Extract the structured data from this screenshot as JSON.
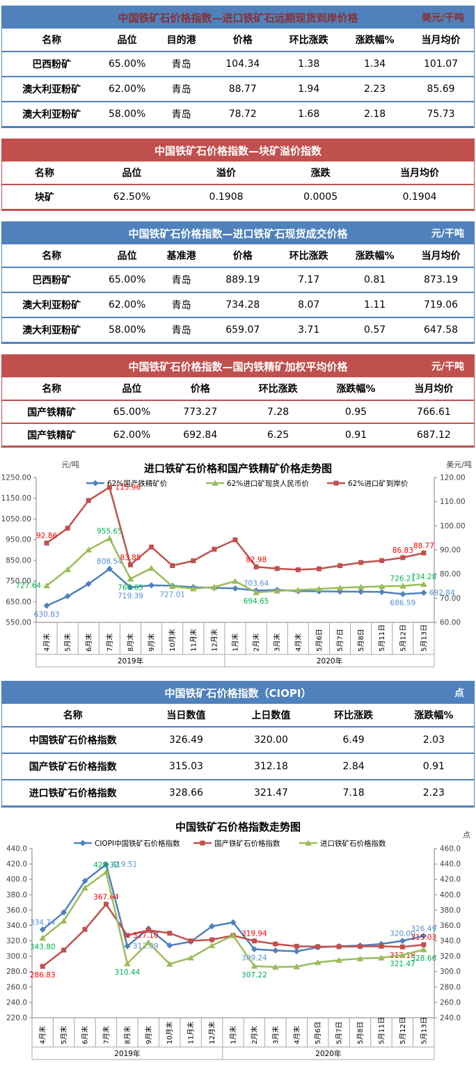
{
  "tables": [
    {
      "theme": "blue",
      "title": "中国铁矿石价格指数—进口铁矿石远期现货到岸价格",
      "unit": "美元/干吨",
      "title_color": "darkred",
      "columns": [
        "名称",
        "品位",
        "目的港",
        "价格",
        "环比涨跌",
        "涨跌幅%",
        "当月均价"
      ],
      "rows": [
        [
          "巴西粉矿",
          "65.00%",
          "青岛",
          "104.34",
          "1.38",
          "1.34",
          "101.07"
        ],
        [
          "澳大利亚粉矿",
          "62.00%",
          "青岛",
          "88.77",
          "1.94",
          "2.23",
          "85.69"
        ],
        [
          "澳大利亚粉矿",
          "58.00%",
          "青岛",
          "78.72",
          "1.68",
          "2.18",
          "75.73"
        ]
      ]
    },
    {
      "theme": "red",
      "title": "中国铁矿石价格指数—块矿溢价指数",
      "unit": "",
      "title_color": "white",
      "columns": [
        "名称",
        "品位",
        "溢价",
        "涨跌",
        "当月均价"
      ],
      "rows": [
        [
          "块矿",
          "62.50%",
          "0.1908",
          "0.0005",
          "0.1904"
        ]
      ]
    },
    {
      "theme": "blue",
      "title": "中国铁矿石价格指数—进口铁矿石现货成交价格",
      "unit": "元/干吨",
      "title_color": "white",
      "columns": [
        "名称",
        "品位",
        "基准港",
        "价格",
        "环比涨跌",
        "涨跌幅%",
        "当月均价"
      ],
      "rows": [
        [
          "巴西粉矿",
          "65.00%",
          "青岛",
          "889.19",
          "7.17",
          "0.81",
          "873.19"
        ],
        [
          "澳大利亚粉矿",
          "62.00%",
          "青岛",
          "734.28",
          "8.07",
          "1.11",
          "719.06"
        ],
        [
          "澳大利亚粉矿",
          "58.00%",
          "青岛",
          "659.07",
          "3.71",
          "0.57",
          "647.58"
        ]
      ]
    },
    {
      "theme": "red",
      "title": "中国铁矿石价格指数—国内铁精矿加权平均价格",
      "unit": "元/干吨",
      "title_color": "white",
      "columns": [
        "名称",
        "品位",
        "价格",
        "环比涨跌",
        "涨跌幅%",
        "当月均价"
      ],
      "rows": [
        [
          "国产铁精矿",
          "65.00%",
          "773.27",
          "7.28",
          "0.95",
          "766.61"
        ],
        [
          "国产铁精矿",
          "62.00%",
          "692.84",
          "6.25",
          "0.91",
          "687.12"
        ]
      ]
    },
    {
      "theme": "blue",
      "title": "中国铁矿石价格指数（CIOPI）",
      "unit": "点",
      "title_color": "white",
      "columns": [
        "名称",
        "当日数值",
        "上日数值",
        "环比涨跌",
        "涨跌幅%"
      ],
      "rows": [
        [
          "中国铁矿石价格指数",
          "326.49",
          "320.00",
          "6.49",
          "2.03"
        ],
        [
          "国产铁矿石价格指数",
          "315.03",
          "312.18",
          "2.84",
          "0.91"
        ],
        [
          "进口铁矿石价格指数",
          "328.66",
          "321.47",
          "7.18",
          "2.23"
        ]
      ]
    }
  ],
  "chart_data": [
    {
      "type": "line",
      "title": "进口铁矿石价格和国产铁精矿价格走势图",
      "left_axis": {
        "label": "元/吨",
        "min": 550,
        "max": 1250,
        "step": 100,
        "decimals": 2
      },
      "right_axis": {
        "label": "美元/吨",
        "min": 60,
        "max": 120,
        "step": 10,
        "decimals": 2
      },
      "grid": false,
      "legend_position": "top",
      "label_decimals": 2,
      "categories": [
        "4月末",
        "5月末",
        "6月末",
        "7月末",
        "8月末",
        "9月末",
        "10月末",
        "11月末",
        "12月末",
        "1月末",
        "2月末",
        "3月末",
        "4月末",
        "5月6日",
        "5月7日",
        "5月8日",
        "5月11日",
        "5月12日",
        "5月13日"
      ],
      "year_groups": [
        {
          "label": "2019年",
          "span": 9
        },
        {
          "label": "2020年",
          "span": 10
        }
      ],
      "series": [
        {
          "name": "62%国产铁精矿价",
          "axis": "left",
          "color": "#4F81BD",
          "label_color": "#558ED5",
          "marker": "diamond",
          "values": [
            630.83,
            676,
            736,
            808.54,
            719.39,
            729,
            727.01,
            720,
            717,
            714,
            703.64,
            707,
            701,
            700,
            699,
            698,
            697,
            686.59,
            692.84
          ],
          "labels": [
            {
              "i": 0,
              "pos": "below"
            },
            {
              "i": 3,
              "pos": "above"
            },
            {
              "i": 4,
              "pos": "below"
            },
            {
              "i": 6,
              "pos": "below"
            },
            {
              "i": 10,
              "pos": "above"
            },
            {
              "i": 17,
              "pos": "below"
            },
            {
              "i": 18,
              "pos": "right"
            }
          ]
        },
        {
          "name": "62%进口矿现货人民币价",
          "axis": "left",
          "color": "#9BBB59",
          "label_color": "#00B050",
          "marker": "triangle",
          "values": [
            727.64,
            806,
            901,
            955.65,
            760.65,
            812,
            724,
            713,
            721,
            749,
            694.65,
            702,
            706,
            712,
            717,
            721,
            724,
            726.21,
            734.28
          ],
          "labels": [
            {
              "i": 0,
              "pos": "left"
            },
            {
              "i": 3,
              "pos": "above"
            },
            {
              "i": 4,
              "pos": "below"
            },
            {
              "i": 10,
              "pos": "below"
            },
            {
              "i": 17,
              "pos": "above"
            },
            {
              "i": 18,
              "pos": "above"
            }
          ]
        },
        {
          "name": "62%进口矿到岸价",
          "axis": "right",
          "color": "#C0504D",
          "label_color": "#FF0000",
          "marker": "square",
          "values": [
            92.86,
            99,
            110.5,
            115.96,
            83.85,
            91.2,
            83.5,
            85.5,
            90.3,
            94.2,
            82.98,
            82.3,
            81.8,
            82.2,
            83.5,
            84.8,
            85.6,
            86.83,
            88.77
          ],
          "labels": [
            {
              "i": 0,
              "pos": "above"
            },
            {
              "i": 3,
              "pos": "right"
            },
            {
              "i": 4,
              "pos": "above"
            },
            {
              "i": 10,
              "pos": "above"
            },
            {
              "i": 17,
              "pos": "above"
            },
            {
              "i": 18,
              "pos": "above"
            }
          ]
        }
      ]
    },
    {
      "type": "line",
      "title": "中国铁矿石价格指数走势图",
      "left_axis": {
        "label": "",
        "min": 220,
        "max": 440,
        "step": 20,
        "decimals": 1
      },
      "right_axis": {
        "label": "点",
        "min": 240,
        "max": 460,
        "step": 20,
        "decimals": 1
      },
      "grid": false,
      "legend_position": "top",
      "label_decimals": 2,
      "categories": [
        "4月末",
        "5月末",
        "6月末",
        "7月末",
        "8月末",
        "9月末",
        "10月末",
        "11月末",
        "12月末",
        "1月末",
        "2月末",
        "3月末",
        "4月末",
        "5月6日",
        "5月7日",
        "5月8日",
        "5月11日",
        "5月12日",
        "5月13日"
      ],
      "year_groups": [
        {
          "label": "2019年",
          "span": 9
        },
        {
          "label": "2020年",
          "span": 10
        }
      ],
      "series": [
        {
          "name": "CIOPI中国铁矿石价格指数",
          "axis": "left",
          "color": "#4F81BD",
          "label_color": "#558ED5",
          "marker": "diamond",
          "values": [
            334.74,
            357,
            398,
            419.51,
            313.09,
            336,
            314,
            319,
            339,
            344,
            309.24,
            307.5,
            306.5,
            311.5,
            313,
            314,
            316,
            320.0,
            326.49
          ],
          "labels": [
            {
              "i": 0,
              "pos": "above"
            },
            {
              "i": 3,
              "pos": "right"
            },
            {
              "i": 4,
              "pos": "right"
            },
            {
              "i": 10,
              "pos": "below"
            },
            {
              "i": 17,
              "pos": "above"
            },
            {
              "i": 18,
              "pos": "above"
            }
          ]
        },
        {
          "name": "国产铁矿石价格指数",
          "axis": "left",
          "color": "#C0504D",
          "label_color": "#FF0000",
          "marker": "square",
          "values": [
            286.83,
            308,
            335,
            367.64,
            327.1,
            334,
            330,
            320,
            321.5,
            327,
            319.94,
            316,
            313,
            312.5,
            312.5,
            312.8,
            313,
            312.18,
            315.03
          ],
          "labels": [
            {
              "i": 0,
              "pos": "below"
            },
            {
              "i": 3,
              "pos": "above"
            },
            {
              "i": 4,
              "pos": "right"
            },
            {
              "i": 10,
              "pos": "above"
            },
            {
              "i": 17,
              "pos": "below"
            },
            {
              "i": 18,
              "pos": "above"
            }
          ]
        },
        {
          "name": "进口铁矿石价格指数",
          "axis": "right",
          "color": "#9BBB59",
          "label_color": "#00B050",
          "marker": "triangle",
          "values": [
            343.8,
            366,
            409,
            429.32,
            310.44,
            338,
            310,
            318,
            334,
            347,
            307.22,
            306,
            306.5,
            312,
            315,
            317,
            318,
            321.47,
            328.66
          ],
          "labels": [
            {
              "i": 0,
              "pos": "below"
            },
            {
              "i": 3,
              "pos": "above"
            },
            {
              "i": 4,
              "pos": "below"
            },
            {
              "i": 10,
              "pos": "below"
            },
            {
              "i": 17,
              "pos": "below"
            },
            {
              "i": 18,
              "pos": "below"
            }
          ]
        }
      ]
    }
  ]
}
